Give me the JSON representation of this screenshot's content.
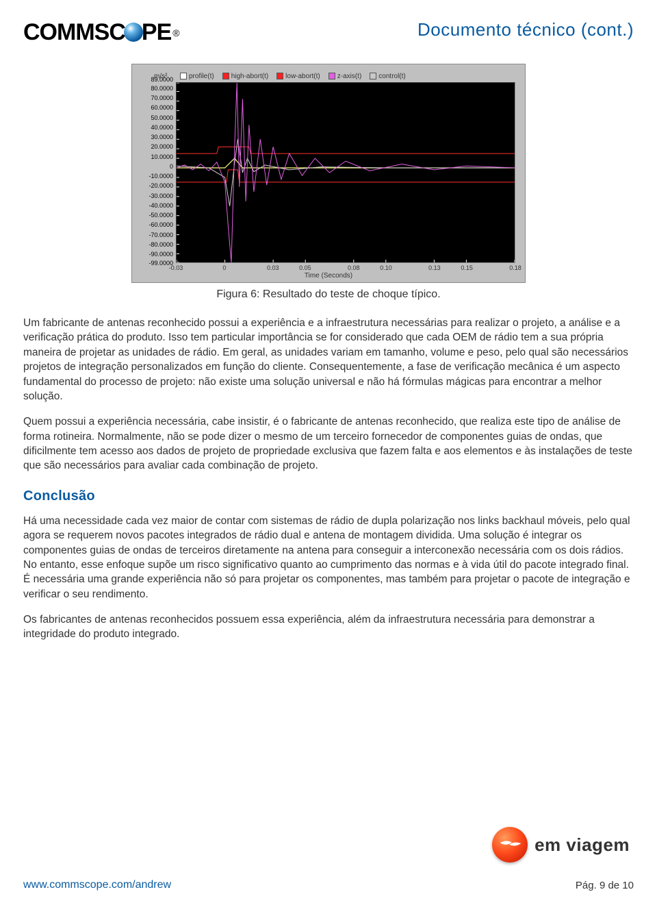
{
  "header": {
    "logo_left": "COMMSC",
    "logo_right": "PE",
    "logo_reg": "®",
    "doc_title": "Documento técnico (cont.)"
  },
  "chart": {
    "y_unit": "m/s²",
    "x_label": "Time (Seconds)",
    "legend": [
      {
        "label": "profile(t)",
        "color": "#ffffff"
      },
      {
        "label": "high-abort(t)",
        "color": "#ff2020"
      },
      {
        "label": "low-abort(t)",
        "color": "#ff2020"
      },
      {
        "label": "z-axis(t)",
        "color": "#e060e0"
      },
      {
        "label": "control(t)",
        "color": "#c8c8c8"
      }
    ],
    "ylim": [
      -99,
      89
    ],
    "y_ticks": [
      "89.0000",
      "80.0000",
      "70.0000",
      "60.0000",
      "50.0000",
      "40.0000",
      "30.0000",
      "20.0000",
      "10.0000",
      "0",
      "-10.0000",
      "-20.0000",
      "-30.0000",
      "-40.0000",
      "-50.0000",
      "-60.0000",
      "-70.0000",
      "-80.0000",
      "-90.0000",
      "-99.0000"
    ],
    "y_vals": [
      89,
      80,
      70,
      60,
      50,
      40,
      30,
      20,
      10,
      0,
      -10,
      -20,
      -30,
      -40,
      -50,
      -60,
      -70,
      -80,
      -90,
      -99
    ],
    "xlim": [
      -0.03,
      0.18
    ],
    "x_ticks": [
      "-0.03",
      "0",
      "0.03",
      "0.05",
      "0.08",
      "0.10",
      "0.13",
      "0.15",
      "0.18"
    ],
    "x_vals": [
      -0.03,
      0,
      0.03,
      0.05,
      0.08,
      0.1,
      0.13,
      0.15,
      0.18
    ],
    "plot_bg": "#000000",
    "panel_bg": "#c0c0c0",
    "tick_color": "#ffffff",
    "series": {
      "profile": {
        "color": "#ffff80",
        "width": 1.2,
        "pts": [
          [
            -0.03,
            0
          ],
          [
            0.0,
            0
          ],
          [
            0.006,
            10
          ],
          [
            0.011,
            0
          ],
          [
            0.18,
            0
          ]
        ]
      },
      "high_abort": {
        "color": "#ff3030",
        "width": 1,
        "pts": [
          [
            -0.03,
            15
          ],
          [
            -0.005,
            15
          ],
          [
            -0.004,
            22
          ],
          [
            0.015,
            22
          ],
          [
            0.016,
            15
          ],
          [
            0.18,
            15
          ]
        ]
      },
      "low_abort": {
        "color": "#ff3030",
        "width": 1,
        "pts": [
          [
            -0.03,
            -15
          ],
          [
            0.001,
            -15
          ],
          [
            0.002,
            -2
          ],
          [
            0.008,
            -2
          ],
          [
            0.009,
            -15
          ],
          [
            0.18,
            -15
          ]
        ]
      },
      "control": {
        "color": "#d0d0d0",
        "width": 1,
        "pts": [
          [
            -0.03,
            2
          ],
          [
            -0.01,
            0
          ],
          [
            0.0,
            -10
          ],
          [
            0.003,
            -40
          ],
          [
            0.006,
            5
          ],
          [
            0.008,
            30
          ],
          [
            0.011,
            -5
          ],
          [
            0.014,
            10
          ],
          [
            0.018,
            -4
          ],
          [
            0.025,
            3
          ],
          [
            0.04,
            -2
          ],
          [
            0.06,
            1
          ],
          [
            0.1,
            0
          ],
          [
            0.18,
            0
          ]
        ]
      },
      "z_axis": {
        "color": "#e060e0",
        "width": 1,
        "pts": [
          [
            -0.03,
            0
          ],
          [
            -0.025,
            3
          ],
          [
            -0.02,
            -2
          ],
          [
            -0.015,
            4
          ],
          [
            -0.01,
            -3
          ],
          [
            -0.005,
            6
          ],
          [
            0.0,
            -15
          ],
          [
            0.002,
            -60
          ],
          [
            0.004,
            -99
          ],
          [
            0.006,
            20
          ],
          [
            0.0075,
            89
          ],
          [
            0.009,
            -20
          ],
          [
            0.011,
            72
          ],
          [
            0.013,
            -35
          ],
          [
            0.015,
            45
          ],
          [
            0.018,
            -25
          ],
          [
            0.022,
            30
          ],
          [
            0.026,
            -18
          ],
          [
            0.03,
            22
          ],
          [
            0.035,
            -12
          ],
          [
            0.04,
            15
          ],
          [
            0.048,
            -8
          ],
          [
            0.056,
            10
          ],
          [
            0.065,
            -5
          ],
          [
            0.075,
            7
          ],
          [
            0.09,
            -3
          ],
          [
            0.11,
            4
          ],
          [
            0.13,
            -2
          ],
          [
            0.15,
            2
          ],
          [
            0.18,
            0
          ]
        ]
      }
    }
  },
  "caption": "Figura 6: Resultado do teste de choque típico.",
  "paragraphs": [
    "Um fabricante de antenas reconhecido possui a experiência e a infraestrutura necessárias para realizar o projeto, a análise e a verificação prática do produto. Isso tem particular importância se for considerado que cada OEM de rádio tem a sua própria maneira de projetar as unidades de rádio. Em geral, as unidades variam em tamanho, volume e peso, pelo qual são necessários projetos de integração personalizados em função do cliente. Consequentemente, a fase de verificação mecânica é um aspecto fundamental do processo de projeto: não existe uma solução universal e não há fórmulas mágicas para encontrar a melhor solução.",
    "Quem possui a experiência necessária, cabe insistir, é o fabricante de antenas reconhecido, que realiza este tipo de análise de forma rotineira. Normalmente, não se pode dizer o mesmo de um terceiro fornecedor de componentes guias de ondas, que dificilmente tem acesso aos dados de projeto de propriedade exclusiva que fazem falta e aos elementos e às instalações de teste que são necessários para avaliar cada combinação de projeto."
  ],
  "section_heading": "Conclusão",
  "conclusion": [
    "Há uma necessidade cada vez maior de contar com sistemas de rádio de dupla polarização nos links backhaul móveis, pelo qual agora se requerem novos pacotes integrados de rádio dual e antena de montagem dividida. Uma solução é integrar os componentes guias de ondas de terceiros diretamente na antena para conseguir a interconexão necessária com os dois rádios. No entanto, esse enfoque supõe um risco significativo quanto ao cumprimento das normas e à vida útil do pacote integrado final. É necessária uma grande experiência não só para projetar os componentes, mas também para projetar o pacote de integração e verificar o seu rendimento.",
    "Os fabricantes de antenas reconhecidos possuem essa experiência, além da infraestrutura necessária para demonstrar a integridade do produto integrado."
  ],
  "badge_text": "em viagem",
  "footer": {
    "url": "www.commscope.com/andrew",
    "page": "Pág. 9 de 10"
  }
}
